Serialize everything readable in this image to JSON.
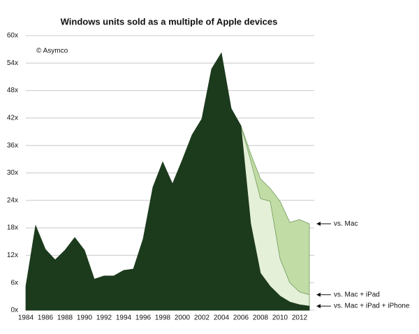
{
  "chart_data": {
    "type": "area",
    "title": "Windows units sold as a multiple of Apple devices",
    "annotation": "© Asymco",
    "x": [
      1984,
      1985,
      1986,
      1987,
      1988,
      1989,
      1990,
      1991,
      1992,
      1993,
      1994,
      1995,
      1996,
      1997,
      1998,
      1999,
      2000,
      2001,
      2002,
      2003,
      2004,
      2005,
      2006,
      2007,
      2008,
      2009,
      2010,
      2011,
      2012,
      2013
    ],
    "series": [
      {
        "name": "vs. Mac",
        "color": "#c2dca6",
        "values": [
          null,
          null,
          null,
          null,
          null,
          null,
          null,
          null,
          null,
          null,
          null,
          null,
          null,
          null,
          null,
          null,
          null,
          null,
          null,
          null,
          null,
          null,
          40.3,
          34.2,
          28.7,
          26.6,
          23.8,
          19.2,
          19.8,
          18.9
        ]
      },
      {
        "name": "vs. Mac + iPad",
        "color": "#e4f0d8",
        "values": [
          null,
          null,
          null,
          null,
          null,
          null,
          null,
          null,
          null,
          null,
          null,
          null,
          null,
          null,
          null,
          null,
          null,
          null,
          null,
          null,
          null,
          null,
          40.3,
          32.7,
          24.4,
          23.8,
          11.3,
          6,
          4,
          3.4
        ]
      },
      {
        "name": "vs. Mac + iPad + iPhone",
        "color": "#1c3a1c",
        "values": [
          5.2,
          18.5,
          13.3,
          11,
          13.1,
          15.9,
          13.1,
          6.8,
          7.5,
          7.5,
          8.7,
          9,
          15.6,
          26.9,
          32.4,
          27.6,
          32.8,
          38.3,
          41.8,
          52.7,
          56.2,
          44.1,
          40.3,
          18.9,
          8.1,
          5.2,
          3.1,
          1.8,
          1.2,
          0.9
        ]
      }
    ],
    "xlim": [
      1984,
      2013.5
    ],
    "xticks": [
      1984,
      1986,
      1988,
      1990,
      1992,
      1994,
      1996,
      1998,
      2000,
      2002,
      2004,
      2006,
      2008,
      2010,
      2012
    ],
    "ylim": [
      0,
      60
    ],
    "yticks": [
      {
        "value": 0,
        "label": "0x"
      },
      {
        "value": 6,
        "label": "6x"
      },
      {
        "value": 12,
        "label": "12x"
      },
      {
        "value": 18,
        "label": "18x"
      },
      {
        "value": 24,
        "label": "24x"
      },
      {
        "value": 30,
        "label": "30x"
      },
      {
        "value": 36,
        "label": "36x"
      },
      {
        "value": 42,
        "label": "42x"
      },
      {
        "value": 48,
        "label": "48x"
      },
      {
        "value": 54,
        "label": "54x"
      },
      {
        "value": 60,
        "label": "60x"
      }
    ],
    "grid": true
  }
}
